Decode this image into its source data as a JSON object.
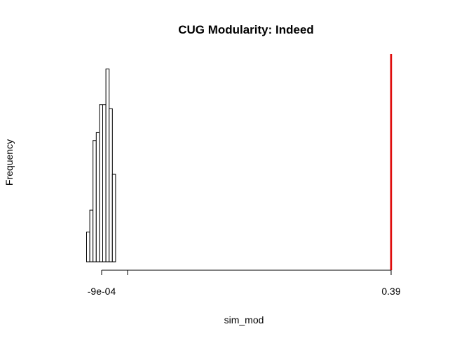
{
  "chart_data": {
    "type": "histogram",
    "title": "CUG Modularity:  Indeed",
    "xlabel": "sim_mod",
    "ylabel": "Frequency",
    "x_tick_labels": [
      "-9e-04",
      "0.39"
    ],
    "bins": [
      {
        "bin": 1,
        "relative_frequency": 0.15
      },
      {
        "bin": 2,
        "relative_frequency": 0.26
      },
      {
        "bin": 3,
        "relative_frequency": 0.61
      },
      {
        "bin": 4,
        "relative_frequency": 0.65
      },
      {
        "bin": 5,
        "relative_frequency": 0.79
      },
      {
        "bin": 6,
        "relative_frequency": 0.79
      },
      {
        "bin": 7,
        "relative_frequency": 0.97
      },
      {
        "bin": 8,
        "relative_frequency": 0.77
      },
      {
        "bin": 9,
        "relative_frequency": 0.44
      }
    ],
    "observed_value": 0.39,
    "observed_line_color": "#dd0000",
    "bar_fill": "#ffffff",
    "bar_stroke": "#000000",
    "grid": false,
    "legend": "none"
  }
}
